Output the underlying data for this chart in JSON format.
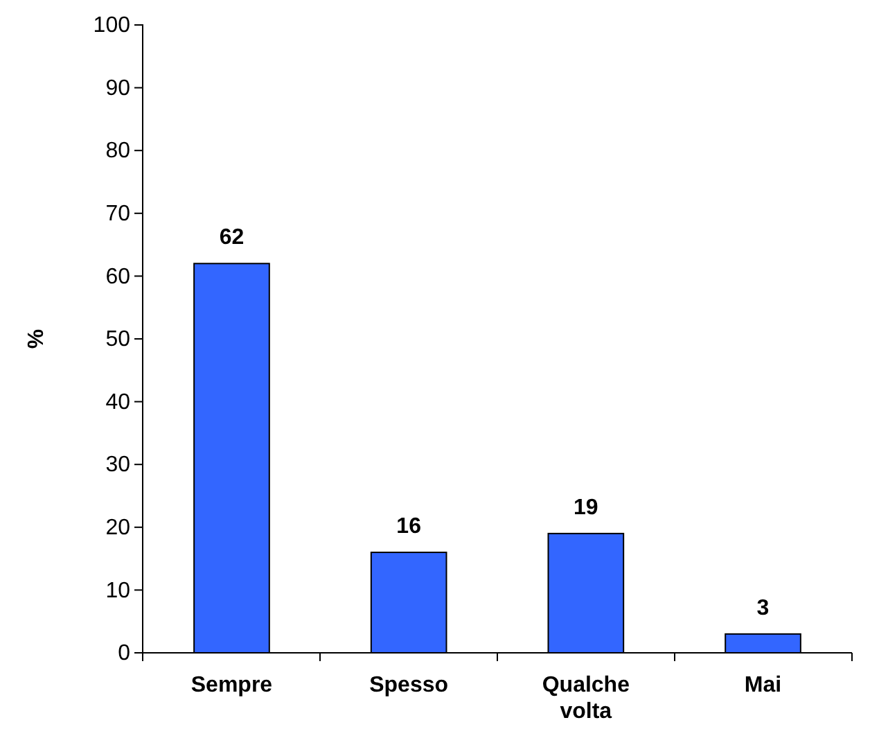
{
  "chart_data": {
    "type": "bar",
    "ylabel": "%",
    "categories": [
      "Sempre",
      "Spesso",
      "Qualche volta",
      "Mai"
    ],
    "values": [
      62,
      16,
      19,
      3
    ],
    "color": "#3366ff",
    "ylim": [
      0,
      100
    ],
    "yticks": [
      0,
      10,
      20,
      30,
      40,
      50,
      60,
      70,
      80,
      90,
      100
    ],
    "data_labels": true
  }
}
